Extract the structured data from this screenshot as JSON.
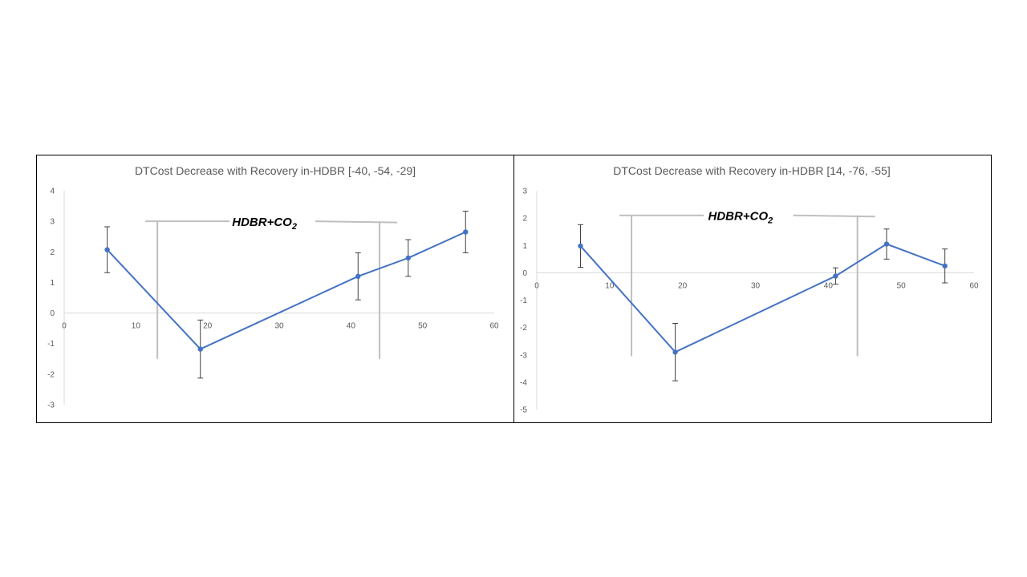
{
  "chart_data": [
    {
      "type": "line",
      "title": "DTCost Decrease with Recovery in-HDBR [-40, -54, -29]",
      "xlabel": "",
      "ylabel": "",
      "xlim": [
        0,
        60
      ],
      "ylim": [
        -3,
        4
      ],
      "x_ticks": [
        0,
        10,
        20,
        30,
        40,
        50,
        60
      ],
      "y_ticks": [
        -3,
        -2,
        -1,
        0,
        1,
        2,
        3,
        4
      ],
      "grid": false,
      "series": [
        {
          "color": "#4472c4",
          "x": [
            6,
            19,
            41,
            48,
            56
          ],
          "y": [
            2.07,
            -1.18,
            1.2,
            1.8,
            2.65
          ],
          "error": [
            0.75,
            0.95,
            0.77,
            0.6,
            0.68
          ]
        }
      ],
      "annotation": {
        "text": "HDBR+CO",
        "subscript": "2",
        "x_start": 13,
        "x_end": 44,
        "y_top": 3.0,
        "y_bottom": -1.5
      }
    },
    {
      "type": "line",
      "title": "DTCost Decrease with Recovery in-HDBR [14, -76, -55]",
      "xlabel": "",
      "ylabel": "",
      "xlim": [
        0,
        60
      ],
      "ylim": [
        -5,
        3
      ],
      "x_ticks": [
        0,
        10,
        20,
        30,
        40,
        50,
        60
      ],
      "y_ticks": [
        -5,
        -4,
        -3,
        -2,
        -1,
        0,
        1,
        2,
        3
      ],
      "grid": false,
      "series": [
        {
          "color": "#4472c4",
          "x": [
            6,
            19,
            41,
            48,
            56
          ],
          "y": [
            0.98,
            -2.9,
            -0.12,
            1.05,
            0.25
          ],
          "error": [
            0.78,
            1.05,
            0.3,
            0.55,
            0.62
          ]
        }
      ],
      "annotation": {
        "text": "HDBR+CO",
        "subscript": "2",
        "x_start": 13,
        "x_end": 44,
        "y_top": 2.1,
        "y_bottom": -3.05
      }
    }
  ]
}
